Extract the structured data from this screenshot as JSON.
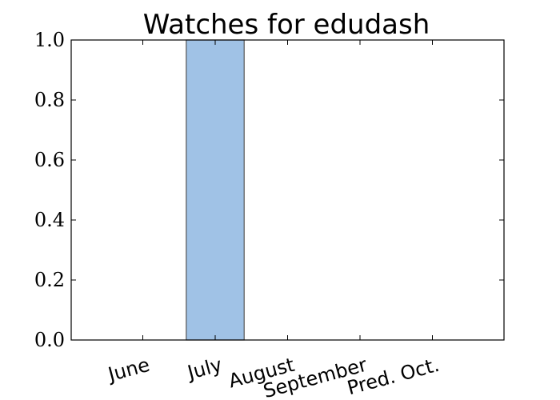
{
  "chart_data": {
    "type": "bar",
    "title": "Watches for edudash",
    "categories": [
      "June",
      "July",
      "August",
      "September",
      "Pred. Oct."
    ],
    "values": [
      0,
      1.0,
      0,
      0,
      0
    ],
    "ylim": [
      0,
      1.0
    ],
    "yticks": [
      "0.0",
      "0.2",
      "0.4",
      "0.6",
      "0.8",
      "1.0"
    ],
    "grid": false,
    "bar_color": "#a0c2e6",
    "bar_edge_color": "#555555"
  }
}
